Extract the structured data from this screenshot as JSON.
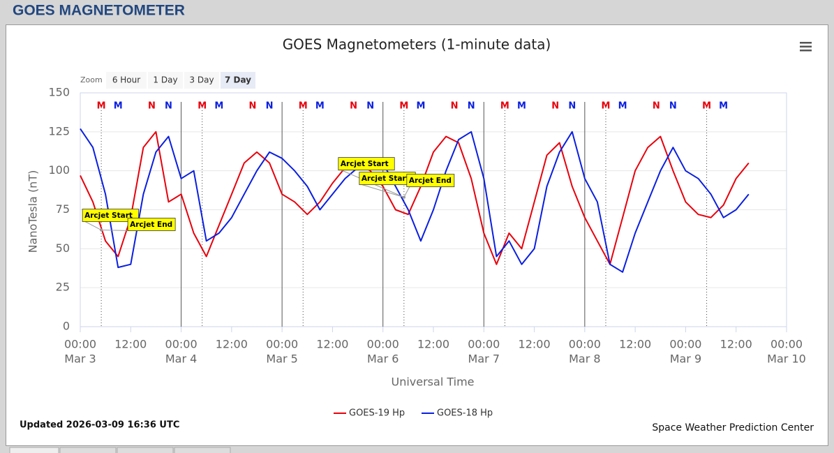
{
  "header": {
    "title": "GOES MAGNETOMETER"
  },
  "zoom": {
    "label": "Zoom",
    "buttons": [
      "6 Hour",
      "1 Day",
      "3 Day",
      "7 Day"
    ],
    "selected": "7 Day"
  },
  "chart_data": {
    "type": "line",
    "title": "GOES Magnetometers (1-minute data)",
    "y_label": "NanoTesla (nT)",
    "x_label": "Universal Time",
    "ylim": [
      0,
      150
    ],
    "yticks": [
      0,
      25,
      50,
      75,
      100,
      125,
      150
    ],
    "grid": true,
    "xlim": [
      "Mar 3 00:00",
      "Mar 10 00:00"
    ],
    "xticks": [
      {
        "value": "Mar 3 00:00",
        "label": [
          "00:00",
          "Mar 3"
        ]
      },
      {
        "value": "Mar 3 12:00",
        "label": "12:00"
      },
      {
        "value": "Mar 4 00:00",
        "label": [
          "00:00",
          "Mar 4"
        ]
      },
      {
        "value": "Mar 4 12:00",
        "label": "12:00"
      },
      {
        "value": "Mar 5 00:00",
        "label": [
          "00:00",
          "Mar 5"
        ]
      },
      {
        "value": "Mar 5 12:00",
        "label": "12:00"
      },
      {
        "value": "Mar 6 00:00",
        "label": [
          "00:00",
          "Mar 6"
        ]
      },
      {
        "value": "Mar 6 12:00",
        "label": "12:00"
      },
      {
        "value": "Mar 7 00:00",
        "label": [
          "00:00",
          "Mar 7"
        ]
      },
      {
        "value": "Mar 7 12:00",
        "label": "12:00"
      },
      {
        "value": "Mar 8 00:00",
        "label": [
          "00:00",
          "Mar 8"
        ]
      },
      {
        "value": "Mar 8 12:00",
        "label": "12:00"
      },
      {
        "value": "Mar 9 00:00",
        "label": [
          "00:00",
          "Mar 9"
        ]
      },
      {
        "value": "Mar 9 12:00",
        "label": "12:00"
      },
      {
        "value": "Mar 10 00:00",
        "label": [
          "00:00",
          "Mar 10"
        ]
      }
    ],
    "x": [
      "Mar 3 00:00",
      "Mar 3 03:00",
      "Mar 3 06:00",
      "Mar 3 09:00",
      "Mar 3 12:00",
      "Mar 3 15:00",
      "Mar 3 18:00",
      "Mar 3 21:00",
      "Mar 4 00:00",
      "Mar 4 03:00",
      "Mar 4 06:00",
      "Mar 4 09:00",
      "Mar 4 12:00",
      "Mar 4 15:00",
      "Mar 4 18:00",
      "Mar 4 21:00",
      "Mar 5 00:00",
      "Mar 5 03:00",
      "Mar 5 06:00",
      "Mar 5 09:00",
      "Mar 5 12:00",
      "Mar 5 15:00",
      "Mar 5 18:00",
      "Mar 5 21:00",
      "Mar 6 00:00",
      "Mar 6 03:00",
      "Mar 6 06:00",
      "Mar 6 09:00",
      "Mar 6 12:00",
      "Mar 6 15:00",
      "Mar 6 18:00",
      "Mar 6 21:00",
      "Mar 7 00:00",
      "Mar 7 03:00",
      "Mar 7 06:00",
      "Mar 7 09:00",
      "Mar 7 12:00",
      "Mar 7 15:00",
      "Mar 7 18:00",
      "Mar 7 21:00",
      "Mar 8 00:00",
      "Mar 8 03:00",
      "Mar 8 06:00",
      "Mar 8 09:00",
      "Mar 8 12:00",
      "Mar 8 15:00",
      "Mar 8 18:00",
      "Mar 8 21:00",
      "Mar 9 00:00",
      "Mar 9 03:00",
      "Mar 9 06:00",
      "Mar 9 09:00",
      "Mar 9 12:00",
      "Mar 9 15:00"
    ],
    "series": [
      {
        "name": "GOES-19 Hp",
        "color": "#e8000b",
        "values": [
          97,
          80,
          55,
          45,
          70,
          115,
          125,
          80,
          85,
          60,
          45,
          65,
          85,
          105,
          112,
          105,
          85,
          80,
          72,
          80,
          92,
          102,
          105,
          100,
          90,
          75,
          72,
          90,
          112,
          122,
          118,
          95,
          60,
          40,
          60,
          50,
          80,
          110,
          118,
          90,
          70,
          55,
          40,
          70,
          100,
          115,
          122,
          100,
          80,
          72,
          70,
          78,
          95,
          105
        ]
      },
      {
        "name": "GOES-18 Hp",
        "color": "#0a1fe0",
        "values": [
          127,
          115,
          85,
          38,
          40,
          85,
          112,
          122,
          95,
          100,
          55,
          60,
          70,
          85,
          100,
          112,
          108,
          100,
          90,
          75,
          85,
          95,
          102,
          108,
          105,
          90,
          75,
          55,
          75,
          100,
          120,
          125,
          95,
          45,
          55,
          40,
          50,
          90,
          112,
          125,
          95,
          80,
          40,
          35,
          60,
          80,
          100,
          115,
          100,
          95,
          85,
          70,
          75,
          85
        ]
      }
    ],
    "markers": [
      {
        "label": "M",
        "color": "#e8000b",
        "x": "Mar 3 05:00"
      },
      {
        "label": "M",
        "color": "#0a1fe0",
        "x": "Mar 3 09:00"
      },
      {
        "label": "N",
        "color": "#e8000b",
        "x": "Mar 3 17:00"
      },
      {
        "label": "N",
        "color": "#0a1fe0",
        "x": "Mar 3 21:00"
      },
      {
        "label": "M",
        "color": "#e8000b",
        "x": "Mar 4 05:00"
      },
      {
        "label": "M",
        "color": "#0a1fe0",
        "x": "Mar 4 09:00"
      },
      {
        "label": "N",
        "color": "#e8000b",
        "x": "Mar 4 17:00"
      },
      {
        "label": "N",
        "color": "#0a1fe0",
        "x": "Mar 4 21:00"
      },
      {
        "label": "M",
        "color": "#e8000b",
        "x": "Mar 5 05:00"
      },
      {
        "label": "M",
        "color": "#0a1fe0",
        "x": "Mar 5 09:00"
      },
      {
        "label": "N",
        "color": "#e8000b",
        "x": "Mar 5 17:00"
      },
      {
        "label": "N",
        "color": "#0a1fe0",
        "x": "Mar 5 21:00"
      },
      {
        "label": "M",
        "color": "#e8000b",
        "x": "Mar 6 05:00"
      },
      {
        "label": "M",
        "color": "#0a1fe0",
        "x": "Mar 6 09:00"
      },
      {
        "label": "N",
        "color": "#e8000b",
        "x": "Mar 6 17:00"
      },
      {
        "label": "N",
        "color": "#0a1fe0",
        "x": "Mar 6 21:00"
      },
      {
        "label": "M",
        "color": "#e8000b",
        "x": "Mar 7 05:00"
      },
      {
        "label": "M",
        "color": "#0a1fe0",
        "x": "Mar 7 09:00"
      },
      {
        "label": "N",
        "color": "#e8000b",
        "x": "Mar 7 17:00"
      },
      {
        "label": "N",
        "color": "#0a1fe0",
        "x": "Mar 7 21:00"
      },
      {
        "label": "M",
        "color": "#e8000b",
        "x": "Mar 8 05:00"
      },
      {
        "label": "M",
        "color": "#0a1fe0",
        "x": "Mar 8 09:00"
      },
      {
        "label": "N",
        "color": "#e8000b",
        "x": "Mar 8 17:00"
      },
      {
        "label": "N",
        "color": "#0a1fe0",
        "x": "Mar 8 21:00"
      },
      {
        "label": "M",
        "color": "#e8000b",
        "x": "Mar 9 05:00"
      },
      {
        "label": "M",
        "color": "#0a1fe0",
        "x": "Mar 9 09:00"
      }
    ],
    "guide_lines": {
      "dotted": [
        "Mar 3 05:00",
        "Mar 4 05:00",
        "Mar 5 05:00",
        "Mar 6 05:00",
        "Mar 7 05:00",
        "Mar 8 05:00",
        "Mar 9 05:00"
      ],
      "solid": [
        "Mar 4 00:00",
        "Mar 5 00:00",
        "Mar 6 00:00",
        "Mar 7 00:00",
        "Mar 8 00:00"
      ]
    },
    "annotations": [
      {
        "text": "Arcjet Start",
        "x": "Mar 3 05:00",
        "y": 62
      },
      {
        "text": "Arcjet End",
        "x": "Mar 3 05:00",
        "y": 62
      },
      {
        "text": "Arcjet Start",
        "x": "Mar 6 05:00",
        "y": 83
      },
      {
        "text": "Arcjet Start",
        "x": "Mar 6 05:00",
        "y": 83
      },
      {
        "text": "Arcjet End",
        "x": "Mar 6 05:00",
        "y": 83
      }
    ]
  },
  "footer": {
    "updated": "Updated 2026-03-09 16:36 UTC",
    "credit": "Space Weather Prediction Center"
  }
}
